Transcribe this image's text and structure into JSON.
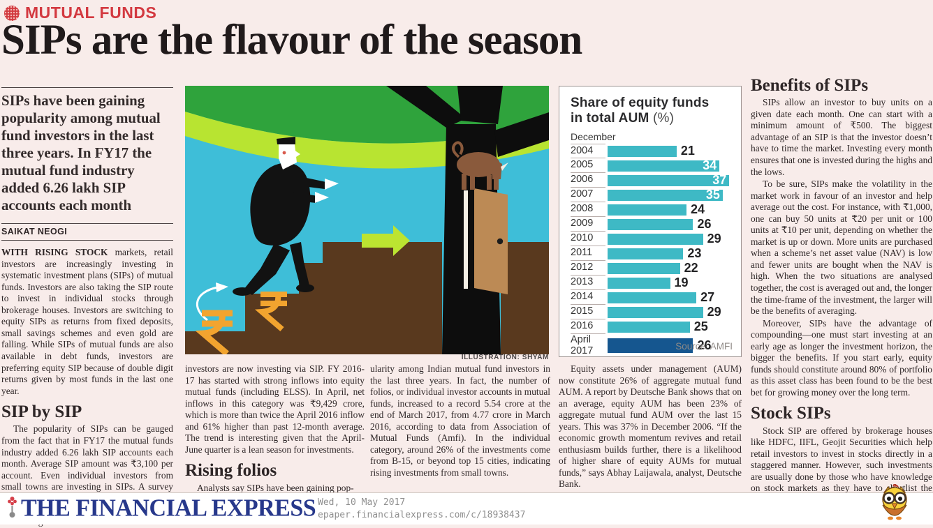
{
  "kicker": "MUTUAL FUNDS",
  "headline": "SIPs are the flavour of the season",
  "standfirst": "SIPs have been gaining popularity among mutual fund investors in the last three years. In FY17 the mutual fund industry added 6.26 lakh SIP accounts each month",
  "byline": "SAIKAT NEOGI",
  "article": {
    "lead_bold": "WITH RISING STOCK",
    "lead_rest": " markets, retail investors are increasingly investing in systematic investment plans (SIPs) of mutual funds. Investors are also taking the SIP route to invest in individual stocks through brokerage houses. Investors are switching to equity SIPs as returns from fixed deposits, small savings schemes and even gold are falling. While SIPs of mutual funds are also available in debt funds, investors are preferring equity SIP because of double digit returns given by most funds in the last one year.",
    "h_sip_by_sip": "SIP by SIP",
    "p_sip_by_sip": "The popularity of SIPs can be gauged from the fact that in FY17 the mutual funds industry added 6.26 lakh SIP accounts each month. Average SIP amount was ₹3,100 per account. Even individual investors from small towns are investing in SIPs. A survey by Securities and Exchange Board of India (Sebi) in April this year shows that nearly 60% of regular mutual fund",
    "p_col2": "investors are now investing via SIP. FY 2016-17 has started with strong inflows into equity mutual funds (including ELSS). In April, net inflows in this category was ₹9,429 crore, which is more than twice the April 2016 inflow and 61% higher than past 12-month average. The trend is interesting given that the April-June quarter is a lean season for investments.",
    "h_rising_folios": "Rising folios",
    "p_rising_folios": "Analysts say SIPs have been gaining pop-",
    "p_col3": "ularity among Indian mutual fund investors in the last three years. In fact, the number of folios, or individual investor accounts in mutual funds, increased to a record 5.54 crore at the end of March 2017, from 4.77 crore in March 2016, according to data from Association of Mutual Funds (Amfi). In the individual category, around 26% of the investments come from B-15, or beyond top 15 cities, indicating rising investments from small towns.",
    "p_col4": "Equity assets under management (AUM) now constitute 26% of aggregate mutual fund AUM. A report by Deutsche Bank shows that on an average, equity AUM has been 23% of aggregate mutual fund AUM over the last 15 years. This was 37% in December 2006. “If the economic growth momentum revives and retail enthusiasm builds further, there is a likelihood of higher share of equity AUMs for mutual funds,” says Abhay Laijawala, analyst, Deutsche Bank.",
    "h_benefits": "Benefits of SIPs",
    "p_benefits_1": "SIPs allow an investor to buy units on a given date each month. One can start with a minimum amount of ₹500. The biggest advantage of an SIP is that the investor doesn’t have to time the market. Investing every month ensures that one is invested during the highs and the lows.",
    "p_benefits_2": "To be sure, SIPs make the volatility in the market work in favour of an investor and help average out the cost. For instance, with ₹1,000, one can buy 50 units at ₹20 per unit or 100 units at ₹10 per unit, depending on whether the market is up or down. More units are purchased when a scheme’s net asset value (NAV) is low and fewer units are bought when the NAV is high. When the two situations are analysed together, the cost is averaged out and, the longer the time-frame of the investment, the larger will be the benefits of averaging.",
    "p_benefits_3": "Moreover, SIPs have the advantage of compounding—one must start investing at an early age as longer the investment horizon, the bigger the benefits. If you start early, equity funds should constitute around 80% of portfolio as this asset class has been found to be the best bet for growing money over the long term.",
    "h_stock_sips": "Stock SIPs",
    "p_stock_sips": "Stock SIP are offered by brokerage houses like HDFC, IIFL, Geojit Securities which help retail investors to invest in stocks directly in a staggered manner. However, such investments are usually done by those who have knowledge on stock markets as they have to shortlist the stocks themselves and invest."
  },
  "illustration_caption": "ILLUSTRATION: SHYAM",
  "chart_data": {
    "type": "bar",
    "orientation": "horizontal",
    "title_line1": "Share of equity funds",
    "title_line2": "in total AUM",
    "title_suffix": " (%)",
    "axis_label": "December",
    "categories": [
      "2004",
      "2005",
      "2006",
      "2007",
      "2008",
      "2009",
      "2010",
      "2011",
      "2012",
      "2013",
      "2014",
      "2015",
      "2016",
      "April|2017"
    ],
    "values": [
      21,
      34,
      37,
      35,
      24,
      26,
      29,
      23,
      22,
      19,
      27,
      29,
      25,
      26
    ],
    "inside_label_indices": [
      1,
      2,
      3
    ],
    "highlight_index": 13,
    "bar_color": "#3eb9c5",
    "highlight_color": "#15568f",
    "xlim": [
      0,
      38
    ],
    "grid": false,
    "source": "Source: AMFI"
  },
  "footer": {
    "logo": "THE FINANCIAL EXPRESS",
    "date": "Wed, 10 May 2017",
    "url": "epaper.financialexpress.com/c/18938437"
  },
  "colors": {
    "page_bg": "#f8ecea",
    "accent_red": "#d33940",
    "logo_navy": "#27388b",
    "chart_teal": "#3eb9c5",
    "chart_navy": "#15568f"
  },
  "icons": {
    "kicker_badge": "dotted-circle-badge",
    "footer_mark": "fe-flower-mark",
    "mascot": "owl-mascot"
  }
}
